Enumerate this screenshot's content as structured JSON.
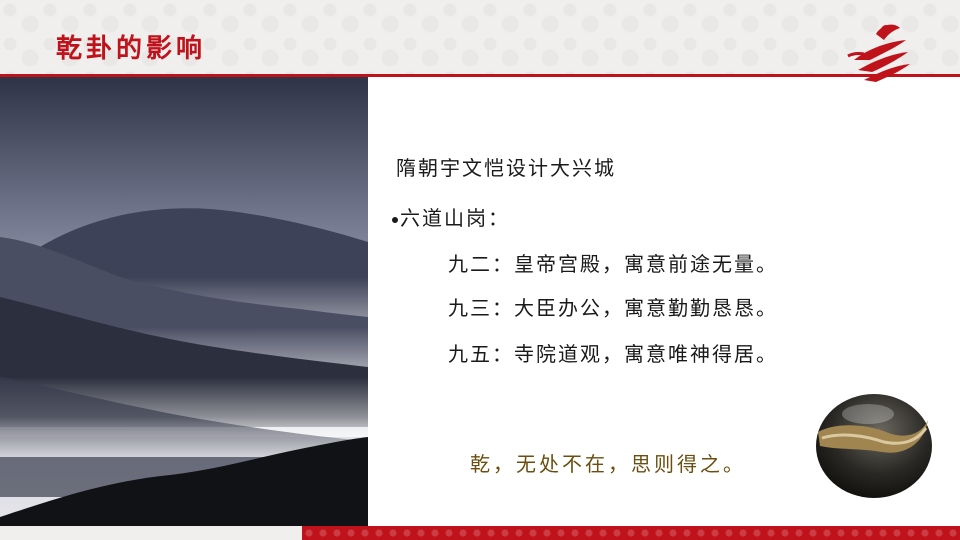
{
  "slide": {
    "title": "乾卦的影响"
  },
  "content": {
    "heading": "隋朝宇文恺设计大兴城",
    "bullet": "六道山岗：",
    "items": [
      "九二：皇帝宫殿，寓意前途无量。",
      "九三：大臣办公，寓意勤勤恳恳。",
      "九五：寺院道观，寓意唯神得居。"
    ],
    "motto": "乾，无处不在，思则得之。"
  },
  "colors": {
    "accent_red": "#c0121b",
    "motto_brown": "#6b4e10",
    "header_bg": "#f1efee"
  },
  "icons": {
    "logo": "red-brush-logo-icon"
  },
  "images": {
    "left": "misty-mountain-landscape",
    "right": "polished-stone"
  }
}
